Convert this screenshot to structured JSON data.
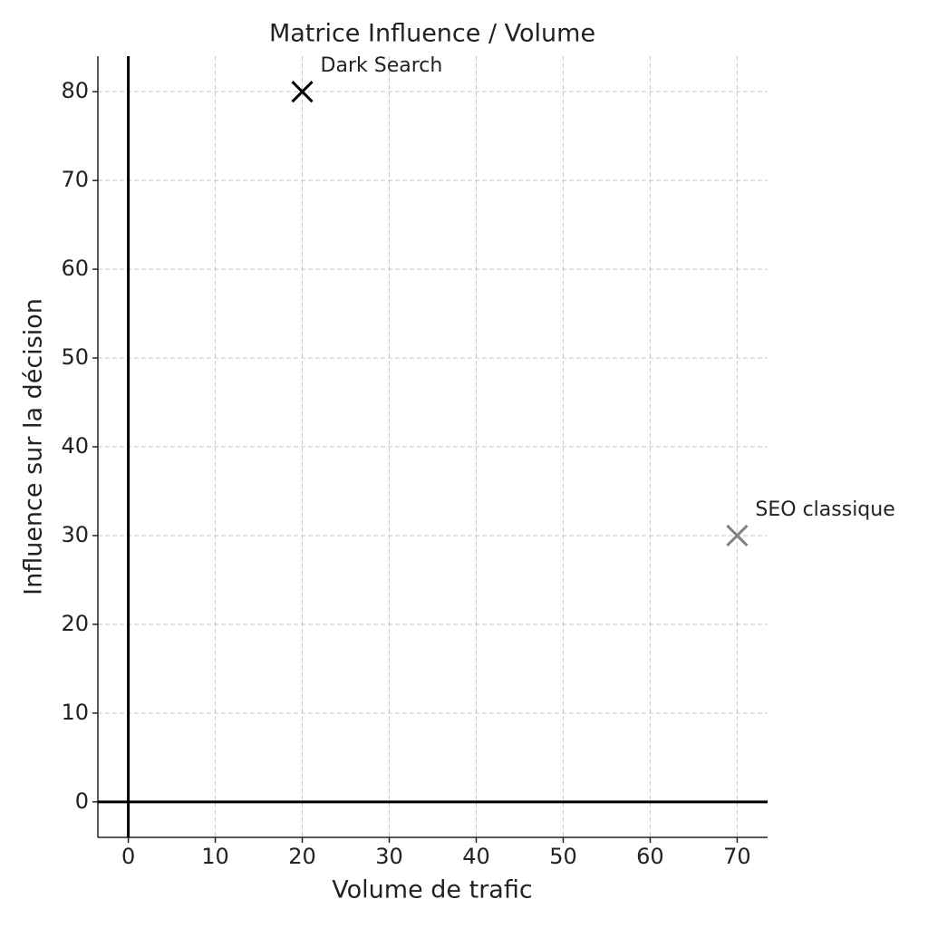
{
  "chart_data": {
    "type": "scatter",
    "title": "Matrice Influence / Volume",
    "x_label": "Volume de trafic",
    "y_label": "Influence sur la décision",
    "series": [
      {
        "name": "Dark Search",
        "color": "#000000",
        "x": [
          20
        ],
        "values": [
          80
        ]
      },
      {
        "name": "SEO classique",
        "color": "#808080",
        "x": [
          70
        ],
        "values": [
          30
        ]
      }
    ],
    "xlim": [
      -3.5,
      73.5
    ],
    "xticks": [
      0,
      10,
      20,
      30,
      40,
      50,
      60,
      70
    ],
    "ylim": [
      -4,
      84
    ],
    "yticks": [
      0,
      10,
      20,
      30,
      40,
      50,
      60,
      70,
      80
    ],
    "grid": true,
    "zero_lines": true,
    "marker": "x"
  }
}
